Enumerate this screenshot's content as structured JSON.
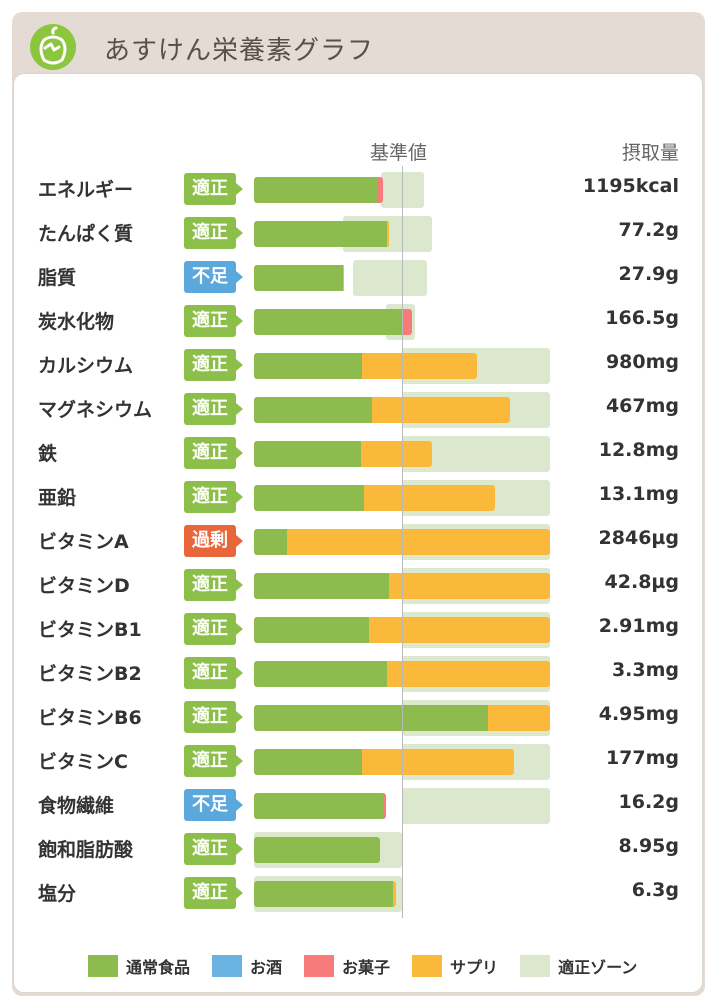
{
  "header": {
    "title": "あすけん栄養素グラフ",
    "logo_icon": "apple-icon"
  },
  "columns": {
    "reference": "基準値",
    "intake": "摂取量"
  },
  "colors": {
    "food": "#8dbb4d",
    "alcohol": "#6ab2e0",
    "sweets": "#f77b7b",
    "supplement": "#fbb93b",
    "zone": "#dce8cd",
    "status_ok": "#8cbf4a",
    "status_low": "#5aa8dc",
    "status_high": "#e8663a"
  },
  "chart_data": {
    "type": "bar",
    "stacked": true,
    "orientation": "horizontal",
    "unit": "% of reference value",
    "xlim": [
      0,
      200
    ],
    "reference_line": 100,
    "rows": [
      {
        "name": "エネルギー",
        "status": "適正",
        "status_type": "ok",
        "intake": "1195kcal",
        "food": 83,
        "alcohol": 0,
        "sweets": 4,
        "supplement": 0,
        "zone": [
          86,
          115
        ]
      },
      {
        "name": "たんぱく質",
        "status": "適正",
        "status_type": "ok",
        "intake": "77.2g",
        "food": 90,
        "alcohol": 0,
        "sweets": 0,
        "supplement": 1,
        "zone": [
          60,
          120
        ]
      },
      {
        "name": "脂質",
        "status": "不足",
        "status_type": "low",
        "intake": "27.9g",
        "food": 60,
        "alcohol": 0,
        "sweets": 0,
        "supplement": 1,
        "zone": [
          67,
          117
        ]
      },
      {
        "name": "炭水化物",
        "status": "適正",
        "status_type": "ok",
        "intake": "166.5g",
        "food": 99,
        "alcohol": 0,
        "sweets": 8,
        "supplement": 0,
        "zone": [
          89,
          109
        ]
      },
      {
        "name": "カルシウム",
        "status": "適正",
        "status_type": "ok",
        "intake": "980mg",
        "food": 73,
        "alcohol": 0,
        "sweets": 0,
        "supplement": 78,
        "zone": [
          100,
          200
        ]
      },
      {
        "name": "マグネシウム",
        "status": "適正",
        "status_type": "ok",
        "intake": "467mg",
        "food": 80,
        "alcohol": 0,
        "sweets": 0,
        "supplement": 93,
        "zone": [
          100,
          200
        ]
      },
      {
        "name": "鉄",
        "status": "適正",
        "status_type": "ok",
        "intake": "12.8mg",
        "food": 72,
        "alcohol": 0,
        "sweets": 0,
        "supplement": 48,
        "zone": [
          100,
          200
        ]
      },
      {
        "name": "亜鉛",
        "status": "適正",
        "status_type": "ok",
        "intake": "13.1mg",
        "food": 74,
        "alcohol": 0,
        "sweets": 0,
        "supplement": 89,
        "zone": [
          100,
          200
        ]
      },
      {
        "name": "ビタミンA",
        "status": "過剰",
        "status_type": "high",
        "intake": "2846µg",
        "food": 22,
        "alcohol": 0,
        "sweets": 0,
        "supplement": 178,
        "zone": [
          100,
          200
        ]
      },
      {
        "name": "ビタミンD",
        "status": "適正",
        "status_type": "ok",
        "intake": "42.8µg",
        "food": 91,
        "alcohol": 0,
        "sweets": 0,
        "supplement": 109,
        "zone": [
          100,
          200
        ]
      },
      {
        "name": "ビタミンB1",
        "status": "適正",
        "status_type": "ok",
        "intake": "2.91mg",
        "food": 78,
        "alcohol": 0,
        "sweets": 0,
        "supplement": 122,
        "zone": [
          100,
          200
        ]
      },
      {
        "name": "ビタミンB2",
        "status": "適正",
        "status_type": "ok",
        "intake": "3.3mg",
        "food": 90,
        "alcohol": 0,
        "sweets": 0,
        "supplement": 110,
        "zone": [
          100,
          200
        ]
      },
      {
        "name": "ビタミンB6",
        "status": "適正",
        "status_type": "ok",
        "intake": "4.95mg",
        "food": 158,
        "alcohol": 0,
        "sweets": 0,
        "supplement": 42,
        "zone": [
          100,
          200
        ]
      },
      {
        "name": "ビタミンC",
        "status": "適正",
        "status_type": "ok",
        "intake": "177mg",
        "food": 73,
        "alcohol": 0,
        "sweets": 0,
        "supplement": 103,
        "zone": [
          100,
          200
        ]
      },
      {
        "name": "食物繊維",
        "status": "不足",
        "status_type": "low",
        "intake": "16.2g",
        "food": 87,
        "alcohol": 0,
        "sweets": 2,
        "supplement": 0,
        "zone": [
          100,
          200
        ]
      },
      {
        "name": "飽和脂肪酸",
        "status": "適正",
        "status_type": "ok",
        "intake": "8.95g",
        "food": 85,
        "alcohol": 0,
        "sweets": 0,
        "supplement": 0,
        "zone": [
          0,
          100
        ]
      },
      {
        "name": "塩分",
        "status": "適正",
        "status_type": "ok",
        "intake": "6.3g",
        "food": 94,
        "alcohol": 0,
        "sweets": 0,
        "supplement": 2,
        "zone": [
          0,
          100
        ]
      }
    ],
    "legend": [
      {
        "key": "food",
        "label": "通常食品"
      },
      {
        "key": "alcohol",
        "label": "お酒"
      },
      {
        "key": "sweets",
        "label": "お菓子"
      },
      {
        "key": "supplement",
        "label": "サプリ"
      },
      {
        "key": "zone",
        "label": "適正ゾーン"
      }
    ]
  }
}
